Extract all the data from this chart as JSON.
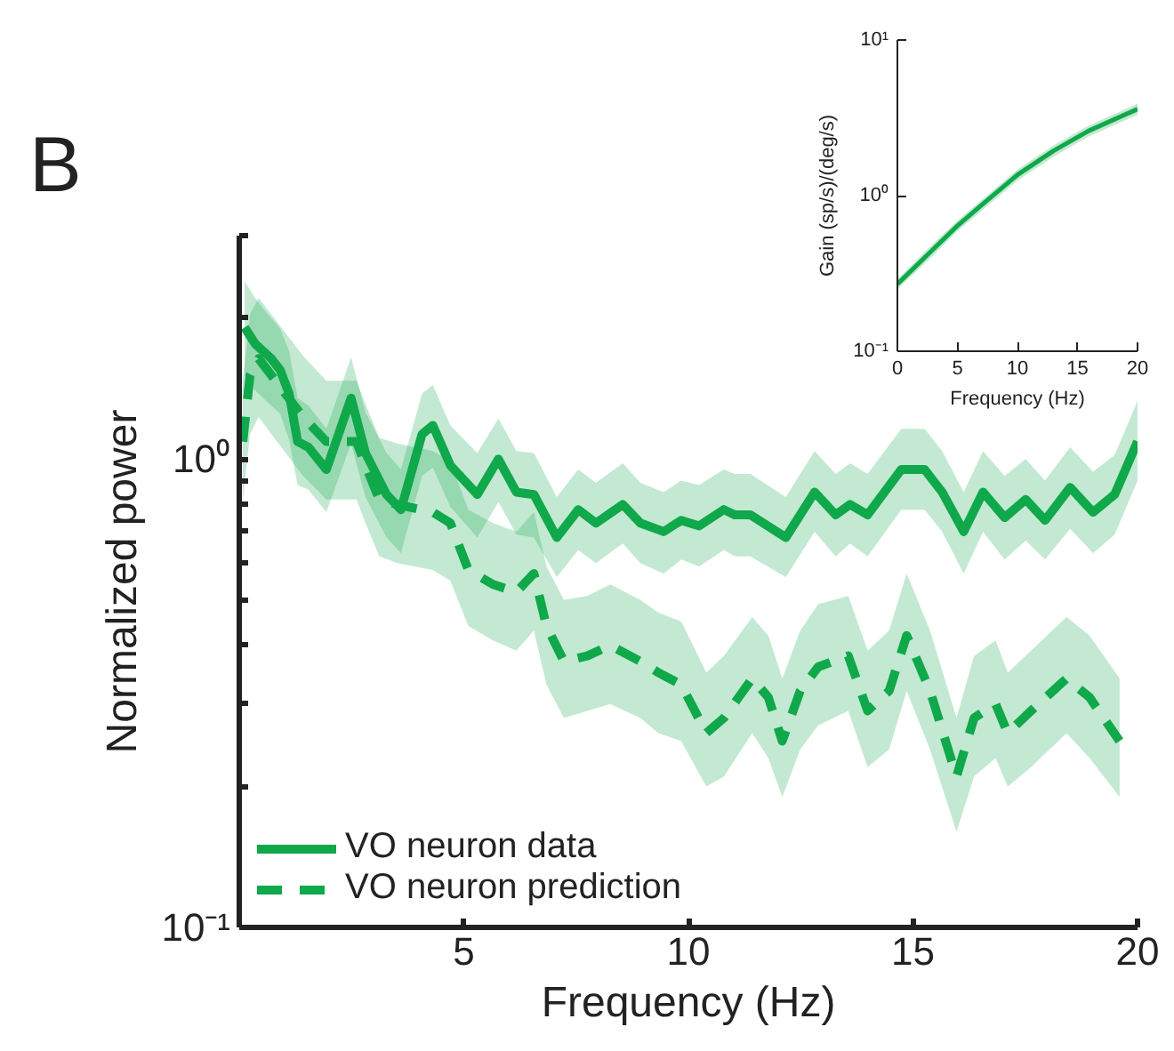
{
  "chart_data": [
    {
      "type": "line",
      "xlabel": "Frequency (Hz)",
      "ylabel": "Normalized power",
      "log": "y",
      "legend": "bottom left",
      "annotations": [
        "B"
      ],
      "xlim": [
        0,
        20
      ],
      "ylim": [
        0.1,
        3
      ],
      "xticks": [
        {
          "value": 0,
          "label": null
        },
        5,
        10,
        15,
        20
      ],
      "yticks": [
        {
          "value": 0.1,
          "label": "10⁻¹"
        },
        {
          "value": 0.2,
          "label": null
        },
        {
          "value": 0.3,
          "label": null
        },
        {
          "value": 0.4,
          "label": null
        },
        {
          "value": 0.5,
          "label": null
        },
        {
          "value": 0.6,
          "label": null
        },
        {
          "value": 0.7,
          "label": null
        },
        {
          "value": 0.8,
          "label": null
        },
        {
          "value": 0.9,
          "label": null
        },
        {
          "value": 1,
          "label": "10⁰"
        },
        {
          "value": 2,
          "label": null
        },
        {
          "value": 3,
          "label": null
        }
      ],
      "series": [
        {
          "name": "VO neuron data",
          "color": "#0fa84a",
          "line_style": "solid",
          "x": [
            0.12,
            0.36,
            0.71,
            0.91,
            1.11,
            1.3,
            1.54,
            1.94,
            2.49,
            2.81,
            3.28,
            3.6,
            4.07,
            4.31,
            4.7,
            5.3,
            5.77,
            6.17,
            6.56,
            7.07,
            7.55,
            7.94,
            8.54,
            8.93,
            9.45,
            9.84,
            10.24,
            10.79,
            11.03,
            11.38,
            12.17,
            12.81,
            13.28,
            13.6,
            13.99,
            14.74,
            15.26,
            15.65,
            16.13,
            16.56,
            17.04,
            17.51,
            17.94,
            18.5,
            19.01,
            19.49,
            20
          ],
          "values": [
            1.91,
            1.76,
            1.64,
            1.55,
            1.38,
            1.09,
            1.06,
            0.95,
            1.35,
            1.03,
            0.84,
            0.78,
            1.13,
            1.18,
            0.97,
            0.84,
            1.0,
            0.85,
            0.84,
            0.68,
            0.78,
            0.73,
            0.8,
            0.73,
            0.7,
            0.74,
            0.72,
            0.78,
            0.76,
            0.76,
            0.68,
            0.85,
            0.76,
            0.8,
            0.76,
            0.95,
            0.95,
            0.85,
            0.7,
            0.85,
            0.75,
            0.82,
            0.74,
            0.87,
            0.77,
            0.84,
            1.09
          ],
          "lower": [
            1.5,
            1.4,
            1.3,
            1.25,
            1.1,
            0.88,
            0.86,
            0.77,
            1.08,
            0.83,
            0.68,
            0.63,
            0.92,
            0.96,
            0.79,
            0.68,
            0.81,
            0.69,
            0.68,
            0.56,
            0.64,
            0.6,
            0.66,
            0.6,
            0.57,
            0.61,
            0.59,
            0.64,
            0.62,
            0.62,
            0.56,
            0.7,
            0.62,
            0.66,
            0.62,
            0.78,
            0.78,
            0.7,
            0.57,
            0.7,
            0.61,
            0.67,
            0.61,
            0.71,
            0.63,
            0.69,
            0.9
          ],
          "upper": [
            2.4,
            2.2,
            2.0,
            1.9,
            1.7,
            1.35,
            1.3,
            1.16,
            1.65,
            1.26,
            1.03,
            0.95,
            1.38,
            1.44,
            1.18,
            1.03,
            1.22,
            1.04,
            1.03,
            0.83,
            0.95,
            0.89,
            0.98,
            0.89,
            0.85,
            0.9,
            0.88,
            0.95,
            0.93,
            0.93,
            0.83,
            1.04,
            0.93,
            0.98,
            0.93,
            1.16,
            1.16,
            1.04,
            0.85,
            1.04,
            0.92,
            1.0,
            0.9,
            1.06,
            0.94,
            1.02,
            1.33
          ]
        },
        {
          "name": "VO neuron prediction",
          "color": "#0fa84a",
          "line_style": "dashed",
          "x": [
            0.08,
            0.24,
            0.43,
            1.42,
            1.94,
            2.61,
            2.81,
            3.12,
            3.52,
            4.31,
            4.7,
            5.1,
            5.65,
            6.17,
            6.56,
            6.84,
            7.23,
            7.75,
            8.26,
            8.93,
            9.33,
            9.84,
            10.4,
            10.79,
            11.42,
            11.78,
            12.09,
            12.49,
            12.89,
            13.56,
            13.99,
            14.47,
            14.86,
            15.38,
            15.97,
            16.36,
            16.84,
            17.11,
            17.63,
            18.42,
            18.93,
            19.6
          ],
          "values": [
            1.09,
            1.51,
            1.64,
            1.23,
            1.09,
            1.09,
            0.97,
            0.82,
            0.8,
            0.77,
            0.73,
            0.58,
            0.54,
            0.52,
            0.57,
            0.44,
            0.37,
            0.38,
            0.4,
            0.37,
            0.35,
            0.33,
            0.26,
            0.28,
            0.34,
            0.31,
            0.25,
            0.32,
            0.36,
            0.38,
            0.29,
            0.32,
            0.42,
            0.32,
            0.21,
            0.28,
            0.3,
            0.26,
            0.29,
            0.34,
            0.31,
            0.25
          ],
          "lower": [
            0.82,
            1.13,
            1.23,
            0.92,
            0.82,
            0.82,
            0.73,
            0.62,
            0.6,
            0.58,
            0.55,
            0.44,
            0.41,
            0.39,
            0.43,
            0.33,
            0.28,
            0.29,
            0.3,
            0.28,
            0.26,
            0.25,
            0.2,
            0.21,
            0.26,
            0.23,
            0.19,
            0.24,
            0.27,
            0.29,
            0.22,
            0.24,
            0.32,
            0.24,
            0.16,
            0.21,
            0.23,
            0.2,
            0.22,
            0.26,
            0.23,
            0.19
          ],
          "upper": [
            1.47,
            2.04,
            2.21,
            1.66,
            1.47,
            1.47,
            1.31,
            1.11,
            1.08,
            1.04,
            0.99,
            0.78,
            0.73,
            0.7,
            0.77,
            0.59,
            0.5,
            0.51,
            0.54,
            0.5,
            0.47,
            0.45,
            0.35,
            0.38,
            0.46,
            0.42,
            0.34,
            0.43,
            0.49,
            0.51,
            0.39,
            0.43,
            0.57,
            0.43,
            0.28,
            0.38,
            0.41,
            0.35,
            0.39,
            0.46,
            0.42,
            0.34
          ]
        }
      ]
    },
    {
      "type": "line",
      "xlabel": "Frequency (Hz)",
      "ylabel": "Gain (sp/s)/(deg/s)",
      "log": "y",
      "xlim": [
        0,
        20
      ],
      "ylim": [
        0.1,
        10
      ],
      "xticks": [
        0,
        5,
        10,
        15,
        20
      ],
      "yticks": [
        {
          "value": 0.1,
          "label": "10⁻¹"
        },
        {
          "value": 1,
          "label": "10⁰"
        },
        {
          "value": 10,
          "label": "10¹"
        }
      ],
      "series": [
        {
          "color": "#0fa84a",
          "line_style": "solid",
          "x": [
            0,
            2.95,
            5,
            7.1,
            10,
            13,
            15.9,
            20
          ],
          "values": [
            0.27,
            0.45,
            0.64,
            0.88,
            1.36,
            1.94,
            2.6,
            3.6
          ],
          "lower": [
            0.25,
            0.41,
            0.59,
            0.81,
            1.25,
            1.78,
            2.39,
            3.3
          ],
          "upper": [
            0.29,
            0.49,
            0.69,
            0.95,
            1.47,
            2.1,
            2.81,
            3.9
          ]
        }
      ]
    }
  ]
}
